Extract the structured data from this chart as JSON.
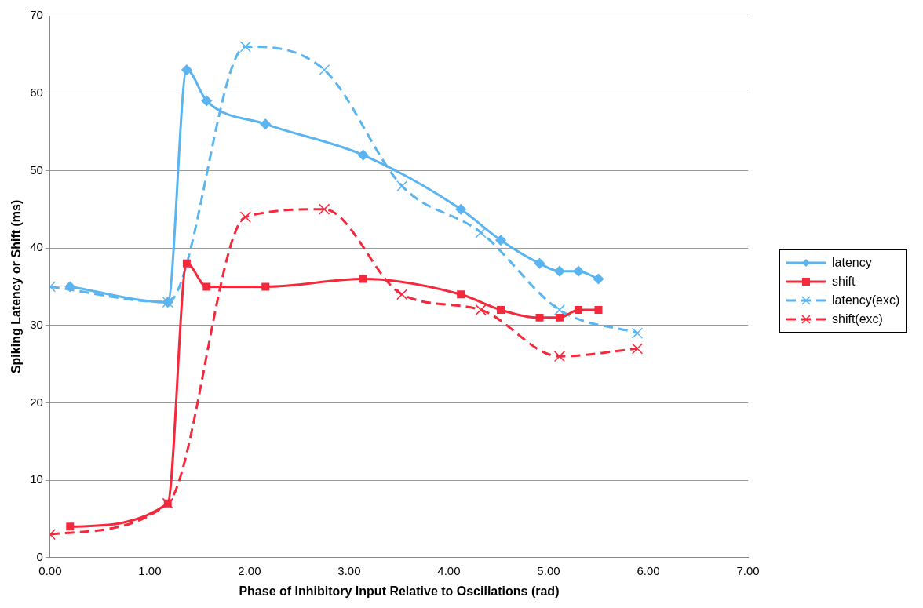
{
  "chart_data": {
    "type": "line",
    "xlabel": "Phase of Inhibitory Input Relative to Oscillations (rad)",
    "ylabel": "Spiking Latency or Shift (ms)",
    "xlim": [
      0,
      7
    ],
    "xticks": [
      {
        "value": 0,
        "label": "0.00"
      },
      {
        "value": 1,
        "label": "1.00"
      },
      {
        "value": 2,
        "label": "2.00"
      },
      {
        "value": 3,
        "label": "3.00"
      },
      {
        "value": 4,
        "label": "4.00"
      },
      {
        "value": 5,
        "label": "5.00"
      },
      {
        "value": 6,
        "label": "6.00"
      },
      {
        "value": 7,
        "label": "7.00"
      }
    ],
    "ylim": [
      0,
      70
    ],
    "yticks": [
      0,
      10,
      20,
      30,
      40,
      50,
      60,
      70
    ],
    "grid": "y",
    "legend": "right",
    "series": [
      {
        "name": "latency",
        "color": "#5ab4f0",
        "marker": "diamond",
        "line_style": "solid",
        "x": [
          0.2,
          1.18,
          1.37,
          1.57,
          2.16,
          3.14,
          4.12,
          4.52,
          4.91,
          5.11,
          5.3,
          5.5
        ],
        "values": [
          35,
          33,
          63,
          59,
          56,
          52,
          45,
          41,
          38,
          37,
          37,
          36
        ]
      },
      {
        "name": "shift",
        "color": "#f5283c",
        "marker": "square",
        "line_style": "solid",
        "x": [
          0.2,
          1.18,
          1.37,
          1.57,
          2.16,
          3.14,
          4.12,
          4.52,
          4.91,
          5.11,
          5.3,
          5.5
        ],
        "values": [
          4,
          7,
          38,
          35,
          35,
          36,
          34,
          32,
          31,
          31,
          32,
          32
        ]
      },
      {
        "name": "latency(exc)",
        "color": "#5ab4f0",
        "marker": "cross",
        "line_style": "dashed",
        "x": [
          0,
          1.18,
          1.96,
          2.75,
          3.53,
          4.32,
          5.11,
          5.89
        ],
        "values": [
          35,
          33,
          66,
          63,
          48,
          42,
          32,
          29
        ]
      },
      {
        "name": "shift(exc)",
        "color": "#f5283c",
        "marker": "cross",
        "line_style": "dashed",
        "x": [
          0,
          1.18,
          1.96,
          2.75,
          3.53,
          4.32,
          5.11,
          5.89
        ],
        "values": [
          3,
          7,
          44,
          45,
          34,
          32,
          26,
          27
        ]
      }
    ]
  }
}
